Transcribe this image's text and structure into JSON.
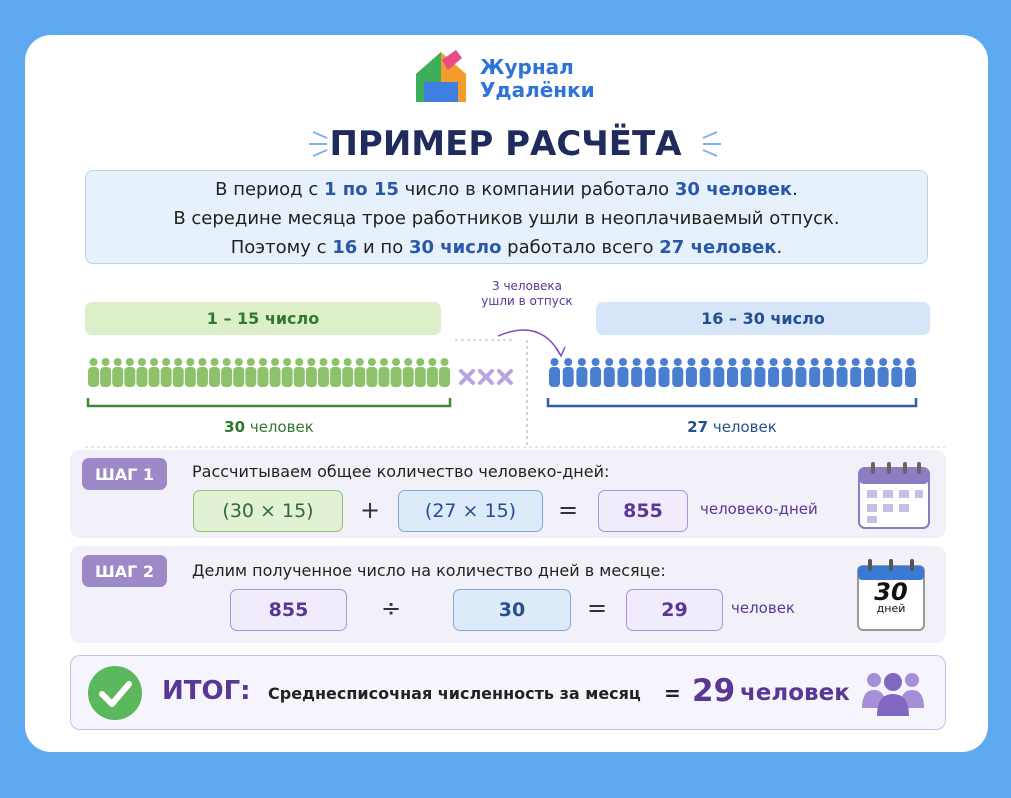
{
  "logo": {
    "line1": "Журнал",
    "line2": "Удалёнки"
  },
  "title": "ПРИМЕР РАСЧЁТА",
  "intro": {
    "lines": [
      [
        "В период с ",
        "1 по 15",
        " число в компании работало ",
        "30 человек",
        "."
      ],
      [
        "В середине месяца трое работников ушли в неоплачиваемый отпуск."
      ],
      [
        "Поэтому с ",
        "16",
        " и по ",
        "30 число",
        " работало всего ",
        "27 человек",
        "."
      ]
    ]
  },
  "groups": {
    "left": {
      "label": "1 – 15 число",
      "count": 30,
      "unit": "человек"
    },
    "right": {
      "label": "16 – 30 число",
      "count": 27,
      "unit": "человек"
    },
    "away": {
      "count": 3,
      "line1": "человека",
      "line2": "ушли в отпуск"
    }
  },
  "steps": [
    {
      "badge": "ШАГ 1",
      "text": "Рассчитываем общее количество человеко-дней:",
      "a": "(30 × 15)",
      "op": "+",
      "b": "(27 × 15)",
      "eq": "=",
      "result": "855",
      "unit": "человеко-дней"
    },
    {
      "badge": "ШАГ 2",
      "text": "Делим полученное число на количество дней в месяце:",
      "a": "855",
      "op": "÷",
      "b": "30",
      "eq": "=",
      "result": "29",
      "unit": "человек",
      "calendar": {
        "number": "30",
        "word": "дней"
      }
    }
  ],
  "result": {
    "label": "ИТОГ:",
    "text": "Среднесписочная численность за месяц",
    "eq": "=",
    "value": "29",
    "unit": "человек"
  }
}
